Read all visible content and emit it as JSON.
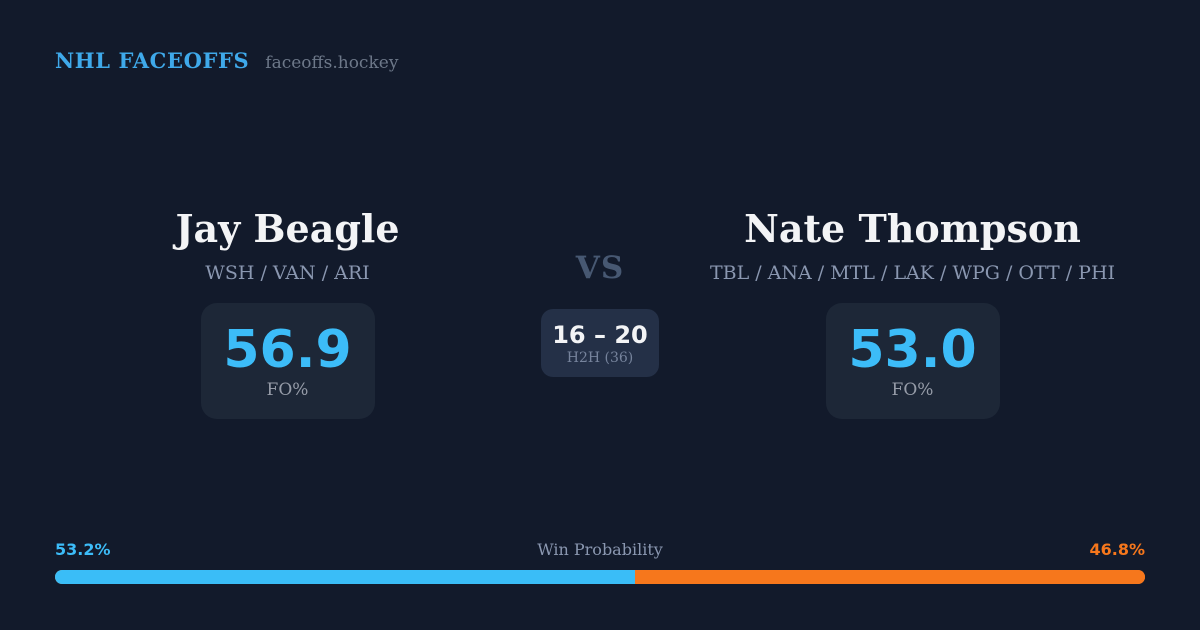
{
  "header": {
    "brand": "NHL FACEOFFS",
    "site": "faceoffs.hockey"
  },
  "left_player": {
    "name": "Jay Beagle",
    "teams": "WSH / VAN / ARI",
    "stat_value": "56.9",
    "stat_label": "FO%"
  },
  "right_player": {
    "name": "Nate Thompson",
    "teams": "TBL / ANA / MTL / LAK / WPG / OTT / PHI",
    "stat_value": "53.0",
    "stat_label": "FO%"
  },
  "matchup": {
    "vs_label": "VS",
    "h2h_record": "16 – 20",
    "h2h_label": "H2H (36)"
  },
  "win_probability": {
    "label": "Win Probability",
    "left_value": "53.2%",
    "right_value": "46.8%",
    "left_pct": 53.2,
    "right_pct": 46.8
  },
  "colors": {
    "background": "#121a2b",
    "card": "#1d2737",
    "h2h_card": "#243047",
    "brand_blue": "#3fa9ea",
    "accent_blue": "#3cbcf8",
    "bar_blue": "#3abdf7",
    "accent_orange": "#f6771c",
    "text_white": "#f3f4f6",
    "muted": "#8a97b0",
    "label_gray": "#969ca8",
    "vs_gray": "#475872",
    "h2h_gray": "#76839c",
    "site_gray": "#6d7889"
  }
}
